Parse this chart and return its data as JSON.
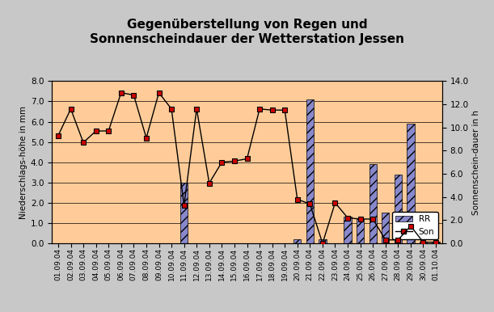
{
  "title": "Gegenüberstellung von Regen und\nSonnenscheindauer der Wetterstation Jessen",
  "ylabel_left": "Niederschlags-höhe in mm",
  "ylabel_right": "Sonnenschein-dauer in h",
  "dates": [
    "01.09.04",
    "02.09.04",
    "03.09.04",
    "04.09.04",
    "05.09.04",
    "06.09.04",
    "07.09.04",
    "08.09.04",
    "09.09.04",
    "10.09.04",
    "11.09.04",
    "12.09.04",
    "13.09.04",
    "14.09.04",
    "15.09.04",
    "16.09.04",
    "17.09.04",
    "18.09.04",
    "19.09.04",
    "20.09.04",
    "21.09.04",
    "22.09.04",
    "23.09.04",
    "24.09.04",
    "25.09.04",
    "26.09.04",
    "27.09.04",
    "28.09.04",
    "29.09.04",
    "30.09.04",
    "01.10.04"
  ],
  "RR": [
    0.0,
    0.0,
    0.0,
    0.0,
    0.0,
    0.0,
    0.0,
    0.0,
    0.0,
    0.0,
    3.0,
    0.0,
    0.0,
    0.0,
    0.0,
    0.0,
    0.0,
    0.0,
    0.0,
    0.2,
    7.1,
    0.2,
    0.0,
    1.3,
    1.2,
    3.9,
    1.5,
    3.4,
    5.9,
    0.1,
    0.1
  ],
  "Son": [
    9.3,
    11.6,
    8.7,
    9.7,
    9.7,
    13.0,
    12.8,
    9.1,
    13.0,
    11.6,
    3.3,
    11.6,
    5.2,
    7.0,
    7.1,
    7.3,
    11.6,
    11.5,
    11.5,
    3.8,
    3.4,
    0.0,
    3.5,
    2.2,
    2.1,
    2.1,
    0.3,
    0.3,
    1.5,
    0.1,
    0.1
  ],
  "ylim_left": [
    0.0,
    8.0
  ],
  "ylim_right": [
    0.0,
    14.0
  ],
  "yticks_left": [
    0.0,
    1.0,
    2.0,
    3.0,
    4.0,
    5.0,
    6.0,
    7.0,
    8.0
  ],
  "yticks_right": [
    0.0,
    2.0,
    4.0,
    6.0,
    8.0,
    10.0,
    12.0,
    14.0
  ],
  "background_color": "#FFCC99",
  "outer_background": "#C8C8C8",
  "bar_facecolor": "#8888CC",
  "bar_edgecolor": "#000000",
  "bar_hatch": "///",
  "line_color": "#000000",
  "marker_facecolor": "#CC0000",
  "marker_edgecolor": "#000000",
  "legend_rr": "RR",
  "legend_son": "Son",
  "title_fontsize": 11,
  "axis_label_fontsize": 7.5,
  "tick_fontsize": 7.5,
  "xtick_fontsize": 6.5
}
